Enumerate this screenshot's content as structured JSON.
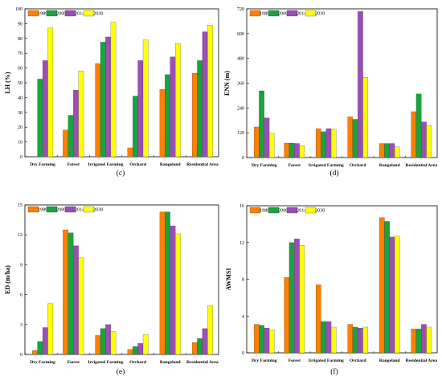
{
  "legend": [
    "1989",
    "2000",
    "2014",
    "2030"
  ],
  "colors": [
    "#ff8000",
    "#1aa33f",
    "#9b4fb4",
    "#ffff00"
  ],
  "chart_data": [
    {
      "type": "bar",
      "panel": "(c)",
      "ylabel": "LH (%)",
      "ylim": [
        0,
        100
      ],
      "yticks": [
        0,
        10,
        20,
        30,
        40,
        50,
        60,
        70,
        80,
        90,
        100
      ],
      "categories": [
        "Dry Farming",
        "Forest",
        "Irrigated Farming",
        "Orchard",
        "Rangeland",
        "Residential Area"
      ],
      "series": [
        {
          "name": "1989",
          "values": [
            0,
            18,
            63,
            6,
            45.5,
            56.5
          ]
        },
        {
          "name": "2000",
          "values": [
            52.5,
            28,
            77.5,
            41,
            55.5,
            65
          ]
        },
        {
          "name": "2014",
          "values": [
            65,
            45,
            81,
            65,
            67.5,
            84.5
          ]
        },
        {
          "name": "2030",
          "values": [
            87,
            58,
            91,
            79,
            76.5,
            89
          ]
        }
      ]
    },
    {
      "type": "bar",
      "panel": "(d)",
      "ylabel": "ENN (m)",
      "ylim": [
        0,
        720
      ],
      "yticks": [
        0,
        120,
        240,
        360,
        480,
        600,
        720
      ],
      "categories": [
        "Dry Farming",
        "Forest",
        "Irrigated Farming",
        "Orchard",
        "Rangeland",
        "Residential Area"
      ],
      "series": [
        {
          "name": "1989",
          "values": [
            148,
            70,
            140,
            197,
            68,
            222
          ]
        },
        {
          "name": "2000",
          "values": [
            323,
            70,
            125,
            185,
            68,
            308
          ]
        },
        {
          "name": "2014",
          "values": [
            192,
            68,
            140,
            707,
            68,
            172
          ]
        },
        {
          "name": "2030",
          "values": [
            118,
            58,
            138,
            388,
            52,
            155
          ]
        }
      ]
    },
    {
      "type": "bar",
      "panel": "(e)",
      "ylabel": "ED (m/ha)",
      "ylim": [
        0,
        15
      ],
      "yticks": [
        0,
        3,
        6,
        9,
        12,
        15
      ],
      "categories": [
        "Dry Farming",
        "Forest",
        "Irrigated Farming",
        "Orchard",
        "Rangeland",
        "Residential Area"
      ],
      "series": [
        {
          "name": "1989",
          "values": [
            0.4,
            12.5,
            1.9,
            0.5,
            14.3,
            1.2
          ]
        },
        {
          "name": "2000",
          "values": [
            1.3,
            12.2,
            2.6,
            0.8,
            14.3,
            1.6
          ]
        },
        {
          "name": "2014",
          "values": [
            2.7,
            10.9,
            3.0,
            1.1,
            12.9,
            2.6
          ]
        },
        {
          "name": "2030",
          "values": [
            5.1,
            9.7,
            2.3,
            2.0,
            12.1,
            4.9
          ]
        }
      ]
    },
    {
      "type": "bar",
      "panel": "(f)",
      "ylabel": "AWMSI",
      "ylim": [
        0,
        16
      ],
      "yticks": [
        0,
        4,
        8,
        12,
        16
      ],
      "categories": [
        "Dry Farming",
        "Forest",
        "Irrigated Farming",
        "Orchard",
        "Rangeland",
        "Residential Area"
      ],
      "series": [
        {
          "name": "1989",
          "values": [
            3.1,
            8.2,
            7.4,
            3.1,
            14.7,
            2.6
          ]
        },
        {
          "name": "2000",
          "values": [
            3.0,
            12.0,
            3.4,
            2.8,
            14.3,
            2.6
          ]
        },
        {
          "name": "2014",
          "values": [
            2.7,
            12.4,
            3.4,
            2.7,
            12.6,
            3.1
          ]
        },
        {
          "name": "2030",
          "values": [
            2.5,
            11.7,
            2.8,
            2.8,
            12.7,
            2.8
          ]
        }
      ]
    }
  ]
}
